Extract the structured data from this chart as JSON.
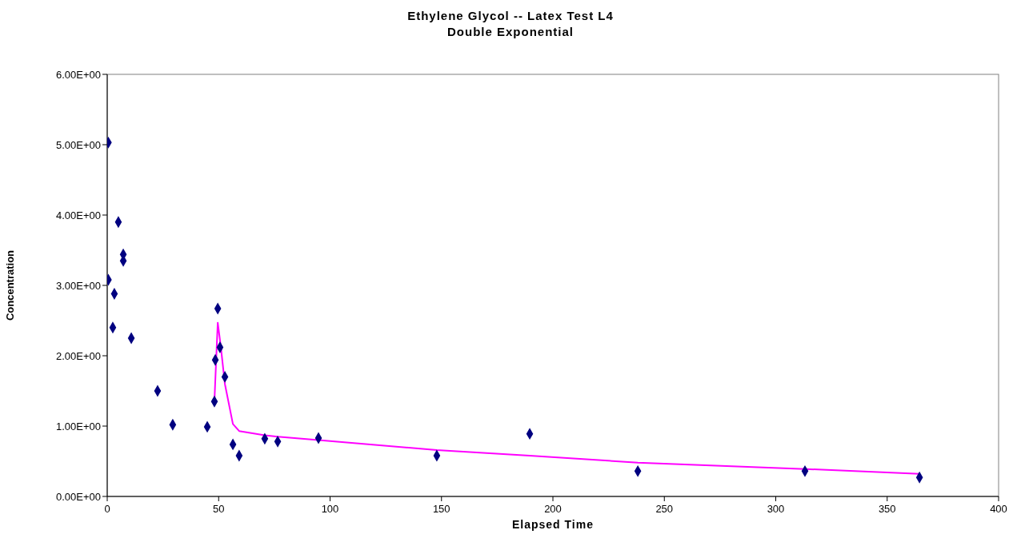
{
  "chart_data": {
    "type": "scatter",
    "title": "Ethylene Glycol -- Latex Test L4",
    "subtitle": "Double Exponential",
    "xlabel": "Elapsed Time",
    "ylabel": "Concentration",
    "xlim": [
      0,
      400
    ],
    "xticks": [
      0,
      50,
      100,
      150,
      200,
      250,
      300,
      350,
      400
    ],
    "ylim": [
      0,
      6
    ],
    "yticks": [
      {
        "value": 0,
        "label": "0.00E+00"
      },
      {
        "value": 1,
        "label": "1.00E+00"
      },
      {
        "value": 2,
        "label": "2.00E+00"
      },
      {
        "value": 3,
        "label": "3.00E+00"
      },
      {
        "value": 4,
        "label": "4.00E+00"
      },
      {
        "value": 5,
        "label": "5.00E+00"
      },
      {
        "value": 6,
        "label": "6.00E+00"
      }
    ],
    "grid": false,
    "series": [
      {
        "color": "#000080",
        "marker": "diamond",
        "x": [
          0.5,
          0.5,
          2.5,
          3.2,
          5,
          7.2,
          7.2,
          10.8,
          22.6,
          29.4,
          44.9,
          48.1,
          48.5,
          49.6,
          50.6,
          52.8,
          56.4,
          59.2,
          70.7,
          76.5,
          94.8,
          147.9,
          189.6,
          238.1,
          313.1,
          364.5
        ],
        "values": [
          5.03,
          3.08,
          2.4,
          2.88,
          3.9,
          3.44,
          3.35,
          2.25,
          1.5,
          1.02,
          0.99,
          1.35,
          1.94,
          2.67,
          2.12,
          1.7,
          0.74,
          0.58,
          0.82,
          0.78,
          0.83,
          0.58,
          0.89,
          0.36,
          0.36,
          0.27
        ]
      },
      {
        "type": "line",
        "color": "#ff00ff",
        "marker": "none",
        "x": [
          48.1,
          49.6,
          50.9,
          52.8,
          56.4,
          59.2,
          70.7,
          76.5,
          94.8,
          147.9,
          189.6,
          238.1,
          313.1,
          364.5
        ],
        "values": [
          1.35,
          2.47,
          2.15,
          1.6,
          1.03,
          0.93,
          0.87,
          0.85,
          0.8,
          0.66,
          0.58,
          0.48,
          0.39,
          0.32
        ]
      }
    ]
  }
}
